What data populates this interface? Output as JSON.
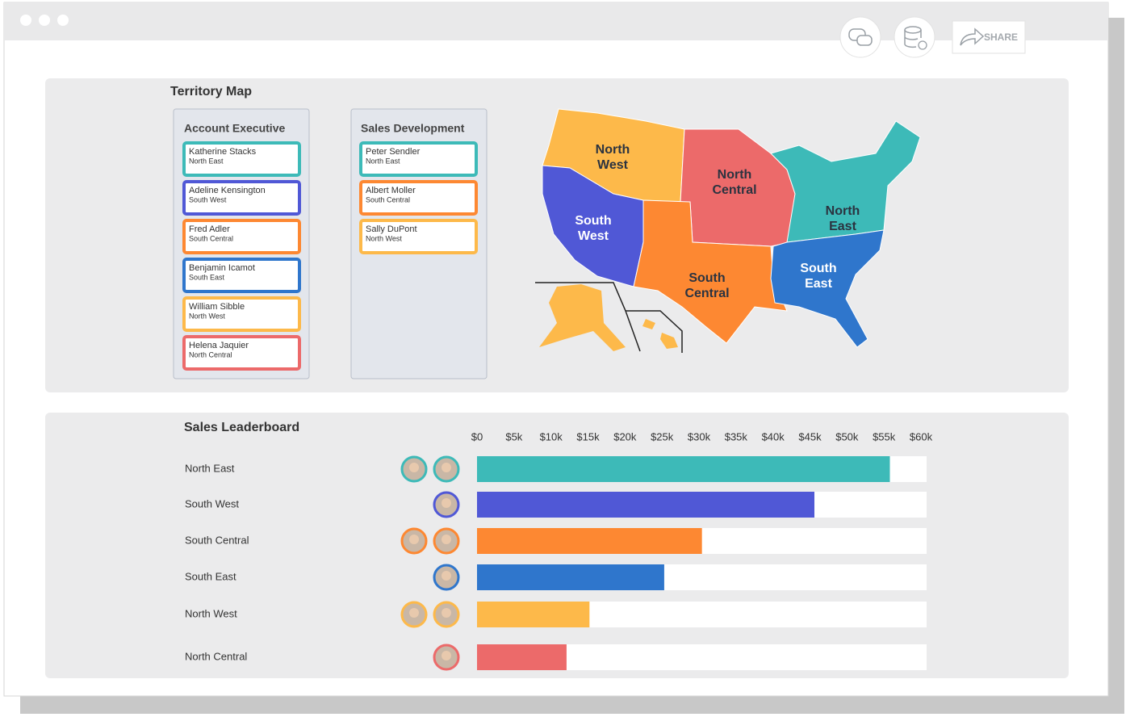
{
  "toolbar": {
    "share": "SHARE"
  },
  "territory_map": {
    "title": "Territory Map",
    "account_executive": {
      "title": "Account Executive",
      "cards": [
        {
          "name": "Katherine Stacks",
          "region": "North East",
          "color": "#3dbab8"
        },
        {
          "name": "Adeline Kensington",
          "region": "South West",
          "color": "#5058d6"
        },
        {
          "name": "Fred Adler",
          "region": "South Central",
          "color": "#fd8832"
        },
        {
          "name": "Benjamin Icamot",
          "region": "South East",
          "color": "#2f76cc"
        },
        {
          "name": "William Sibble",
          "region": "North West",
          "color": "#fdb94a"
        },
        {
          "name": "Helena Jaquier",
          "region": "North Central",
          "color": "#ec6a6a"
        }
      ]
    },
    "sales_development": {
      "title": "Sales Development",
      "cards": [
        {
          "name": "Peter Sendler",
          "region": "North East",
          "color": "#3dbab8"
        },
        {
          "name": "Albert Moller",
          "region": "South Central",
          "color": "#fd8832"
        },
        {
          "name": "Sally DuPont",
          "region": "North West",
          "color": "#fdb94a"
        }
      ]
    },
    "regions": [
      {
        "label": [
          "North",
          "West"
        ],
        "color": "#fdb94a",
        "label_color": "#2b3340"
      },
      {
        "label": [
          "North",
          "Central"
        ],
        "color": "#ec6a6a",
        "label_color": "#2b3340"
      },
      {
        "label": [
          "South",
          "West"
        ],
        "color": "#5058d6",
        "label_color": "#ffffff"
      },
      {
        "label": [
          "North",
          "East"
        ],
        "color": "#3dbab8",
        "label_color": "#2b3340"
      },
      {
        "label": [
          "South",
          "Central"
        ],
        "color": "#fd8832",
        "label_color": "#2b3340"
      },
      {
        "label": [
          "South",
          "East"
        ],
        "color": "#2f76cc",
        "label_color": "#ffffff"
      }
    ]
  },
  "chart_data": {
    "type": "bar",
    "orientation": "horizontal",
    "title": "Sales Leaderboard",
    "categories": [
      "North East",
      "South West",
      "South Central",
      "South East",
      "North West",
      "North Central"
    ],
    "values": [
      55800,
      45600,
      30400,
      25300,
      15200,
      12100
    ],
    "colors": [
      "#3dbab8",
      "#5058d6",
      "#fd8832",
      "#2f76cc",
      "#fdb94a",
      "#ec6a6a"
    ],
    "xlim": [
      0,
      60000
    ],
    "xticks": [
      {
        "value": 0,
        "label": "$0"
      },
      {
        "value": 5000,
        "label": "$5k"
      },
      {
        "value": 10000,
        "label": "$10k"
      },
      {
        "value": 15000,
        "label": "$15k"
      },
      {
        "value": 20000,
        "label": "$20k"
      },
      {
        "value": 25000,
        "label": "$25k"
      },
      {
        "value": 30000,
        "label": "$30k"
      },
      {
        "value": 35000,
        "label": "$35k"
      },
      {
        "value": 40000,
        "label": "$40k"
      },
      {
        "value": 45000,
        "label": "$45k"
      },
      {
        "value": 50000,
        "label": "$50k"
      },
      {
        "value": 55000,
        "label": "$55k"
      },
      {
        "value": 60000,
        "label": "$60k"
      }
    ],
    "grid": false
  }
}
